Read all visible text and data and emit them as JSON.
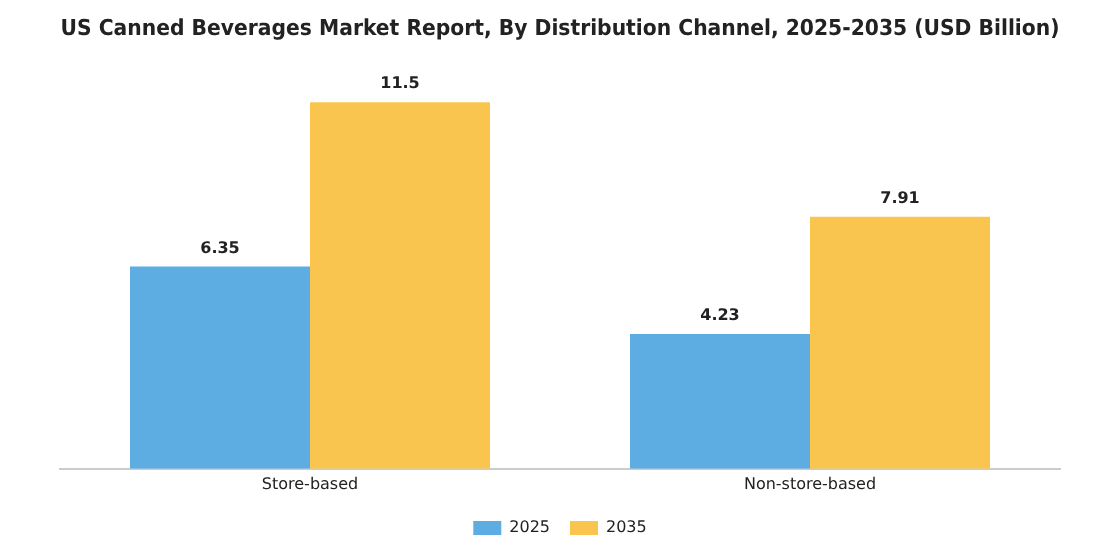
{
  "chart_data": {
    "type": "bar",
    "title": "US Canned Beverages Market Report, By Distribution Channel, 2025-2035 (USD Billion)",
    "categories": [
      "Store-based",
      "Non-store-based"
    ],
    "series": [
      {
        "name": "2025",
        "color": "#5dade2",
        "values": [
          6.35,
          4.23
        ]
      },
      {
        "name": "2035",
        "color": "#f9c54f",
        "values": [
          11.5,
          7.91
        ]
      }
    ],
    "data_labels": true,
    "legend": "bottom",
    "tick_labels": "x",
    "grid": false
  }
}
